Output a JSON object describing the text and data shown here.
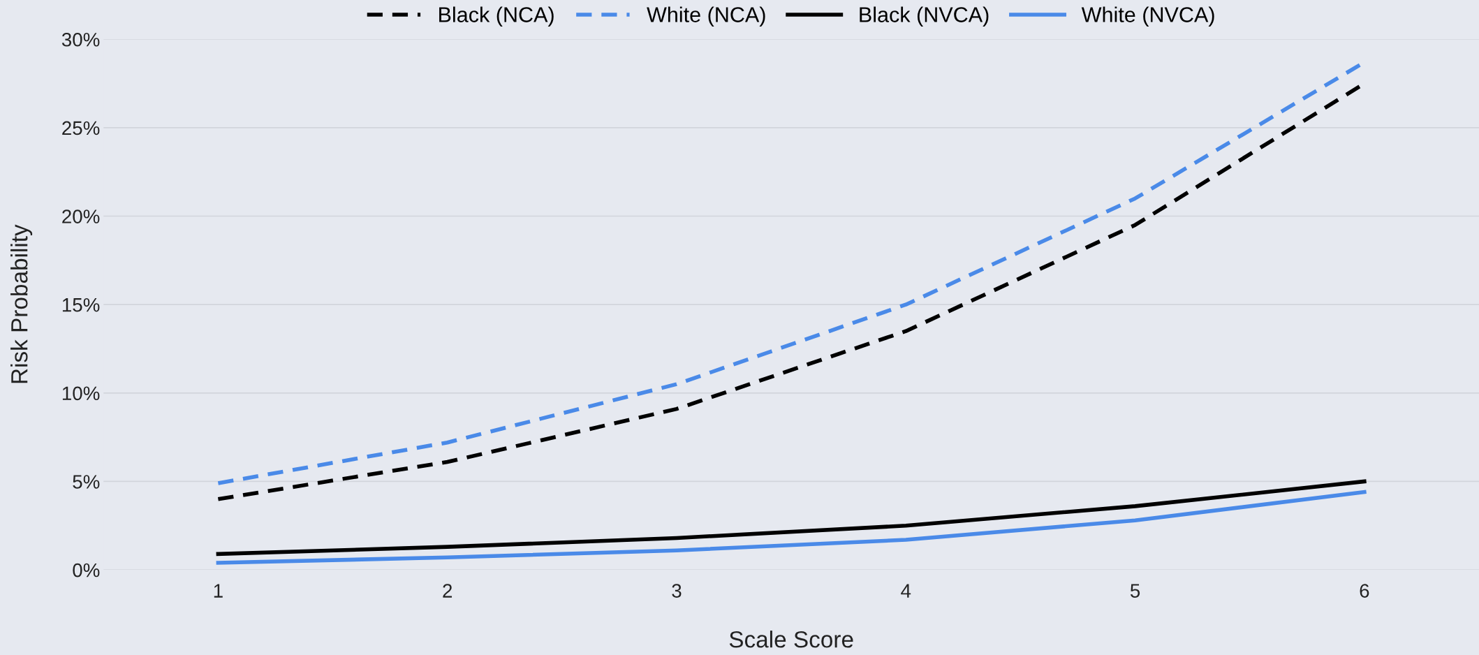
{
  "chart_data": {
    "type": "line",
    "xlabel": "Scale Score",
    "ylabel": "Risk Probability",
    "categories": [
      "1",
      "2",
      "3",
      "4",
      "5",
      "6"
    ],
    "series": [
      {
        "name": "Black (NCA)",
        "color": "#000000",
        "line_style": "dashed",
        "values": [
          4.0,
          6.1,
          9.1,
          13.5,
          19.5,
          27.5
        ]
      },
      {
        "name": "White (NCA)",
        "color": "#4a8ae8",
        "line_style": "dashed",
        "values": [
          4.9,
          7.2,
          10.5,
          15.0,
          21.0,
          28.7
        ]
      },
      {
        "name": "Black (NVCA)",
        "color": "#000000",
        "line_style": "solid",
        "values": [
          0.9,
          1.3,
          1.8,
          2.5,
          3.6,
          5.0
        ]
      },
      {
        "name": "White (NVCA)",
        "color": "#4a8ae8",
        "line_style": "solid",
        "values": [
          0.4,
          0.7,
          1.1,
          1.7,
          2.8,
          4.4
        ]
      }
    ],
    "ylim": [
      0,
      30
    ],
    "yticks": [
      {
        "value": 0,
        "label": "0%"
      },
      {
        "value": 5,
        "label": "5%"
      },
      {
        "value": 10,
        "label": "10%"
      },
      {
        "value": 15,
        "label": "15%"
      },
      {
        "value": 20,
        "label": "20%"
      },
      {
        "value": 25,
        "label": "25%"
      },
      {
        "value": 30,
        "label": "30%"
      }
    ],
    "grid": "y",
    "legend": "top",
    "marker": "none"
  }
}
